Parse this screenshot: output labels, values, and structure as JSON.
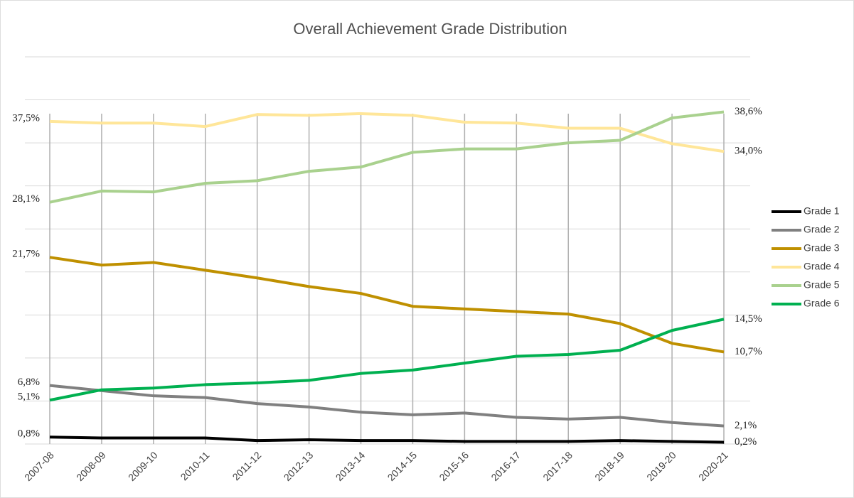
{
  "chart_data": {
    "type": "line",
    "title": "Overall Achievement Grade Distribution",
    "categories": [
      "2007-08",
      "2008-09",
      "2009-10",
      "2010-11",
      "2011-12",
      "2012-13",
      "2013-14",
      "2014-15",
      "2015-16",
      "2016-17",
      "2017-18",
      "2018-19",
      "2019-20",
      "2020-21"
    ],
    "ylim": [
      0,
      45
    ],
    "yticks": [
      0,
      5,
      10,
      15,
      20,
      25,
      30,
      35,
      40,
      45
    ],
    "grid": true,
    "legend": "right",
    "series": [
      {
        "name": "Grade 1",
        "color": "#000000",
        "values": [
          0.8,
          0.7,
          0.7,
          0.7,
          0.4,
          0.5,
          0.4,
          0.4,
          0.3,
          0.3,
          0.3,
          0.4,
          0.3,
          0.2
        ],
        "value_labels": [
          "0,8%",
          null,
          null,
          null,
          null,
          null,
          null,
          null,
          null,
          null,
          null,
          null,
          null,
          "0,2%"
        ]
      },
      {
        "name": "Grade 2",
        "color": "#808080",
        "values": [
          6.8,
          6.2,
          5.6,
          5.4,
          4.7,
          4.3,
          3.7,
          3.4,
          3.6,
          3.1,
          2.9,
          3.1,
          2.5,
          2.1
        ],
        "value_labels": [
          "6,8%",
          null,
          null,
          null,
          null,
          null,
          null,
          null,
          null,
          null,
          null,
          null,
          null,
          "2,1%"
        ]
      },
      {
        "name": "Grade 3",
        "color": "#bf9000",
        "values": [
          21.7,
          20.8,
          21.1,
          20.2,
          19.3,
          18.3,
          17.5,
          16.0,
          15.7,
          15.4,
          15.1,
          14.0,
          11.7,
          10.7
        ],
        "value_labels": [
          "21,7%",
          null,
          null,
          null,
          null,
          null,
          null,
          null,
          null,
          null,
          null,
          null,
          null,
          "10,7%"
        ]
      },
      {
        "name": "Grade 4",
        "color": "#ffe699",
        "values": [
          37.5,
          37.3,
          37.3,
          36.9,
          38.3,
          38.2,
          38.4,
          38.2,
          37.4,
          37.3,
          36.7,
          36.7,
          34.9,
          34.0
        ],
        "value_labels": [
          "37,5%",
          null,
          null,
          null,
          null,
          null,
          null,
          null,
          null,
          null,
          null,
          null,
          null,
          "34,0%"
        ]
      },
      {
        "name": "Grade 5",
        "color": "#a9d18e",
        "values": [
          28.1,
          29.4,
          29.3,
          30.3,
          30.6,
          31.7,
          32.2,
          33.9,
          34.3,
          34.3,
          35.0,
          35.3,
          37.9,
          38.6
        ],
        "value_labels": [
          "28,1%",
          null,
          null,
          null,
          null,
          null,
          null,
          null,
          null,
          null,
          null,
          null,
          null,
          "38,6%"
        ]
      },
      {
        "name": "Grade 6",
        "color": "#00b050",
        "values": [
          5.1,
          6.3,
          6.5,
          6.9,
          7.1,
          7.4,
          8.2,
          8.6,
          9.4,
          10.2,
          10.4,
          10.9,
          13.2,
          14.5
        ],
        "value_labels": [
          "5,1%",
          null,
          null,
          null,
          null,
          null,
          null,
          null,
          null,
          null,
          null,
          null,
          null,
          "14,5%"
        ]
      }
    ]
  }
}
